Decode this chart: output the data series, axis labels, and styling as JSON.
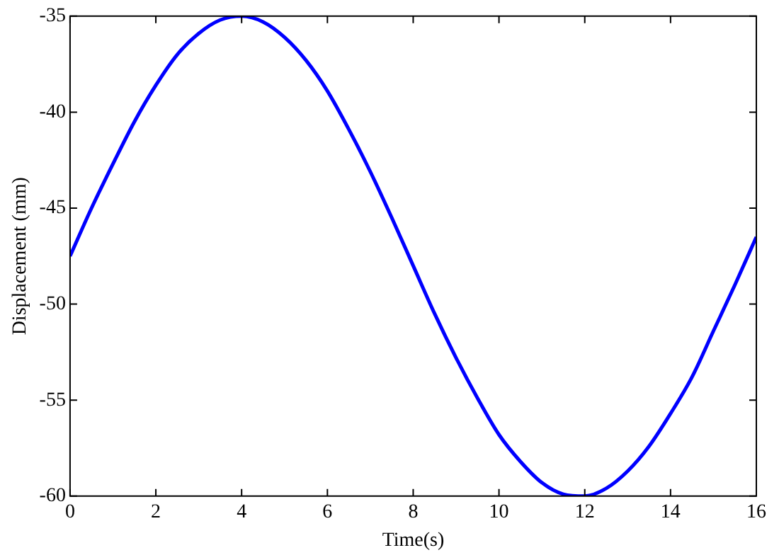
{
  "chart_data": {
    "type": "line",
    "xlabel": "Time(s)",
    "ylabel": "Displacement (mm)",
    "x": [
      0,
      0.5,
      1,
      1.5,
      2,
      2.5,
      3,
      3.5,
      4,
      4.5,
      5,
      5.5,
      6,
      6.5,
      7,
      7.5,
      8,
      8.5,
      9,
      9.5,
      10,
      10.5,
      11,
      11.5,
      12,
      12.5,
      13,
      13.5,
      14,
      14.5,
      15,
      15.5,
      16
    ],
    "series": [
      {
        "color": "#0000ff",
        "values": [
          -47.5,
          -45.0,
          -42.7,
          -40.5,
          -38.6,
          -37.0,
          -35.9,
          -35.2,
          -35.0,
          -35.3,
          -36.1,
          -37.3,
          -38.9,
          -40.9,
          -43.1,
          -45.5,
          -48.0,
          -50.5,
          -52.8,
          -54.9,
          -56.8,
          -58.2,
          -59.3,
          -59.9,
          -60.0,
          -59.6,
          -58.7,
          -57.4,
          -55.7,
          -53.8,
          -51.4,
          -49.0,
          -46.5
        ]
      }
    ],
    "xlim": [
      0,
      16
    ],
    "xticks": [
      0,
      2,
      4,
      6,
      8,
      10,
      12,
      14,
      16
    ],
    "ylim": [
      -60,
      -35
    ],
    "yticks": [
      -60,
      -55,
      -50,
      -45,
      -40,
      -35
    ],
    "grid": false,
    "legend": false,
    "marker": "none",
    "line_style": "solid"
  }
}
